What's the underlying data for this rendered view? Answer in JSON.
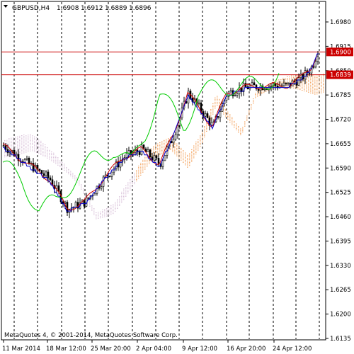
{
  "header": {
    "symbol_timeframe": "GBPUSD,H4",
    "ohlc": [
      "1.6908",
      "1.6912",
      "1.6889",
      "1.6896"
    ]
  },
  "footer": {
    "copyright": "MetaQuotes 4, © 2001-2014, MetaQuotes Software Corp."
  },
  "chart_data": {
    "type": "candlestick",
    "price_axis": [
      "1.6980",
      "1.6915",
      "1.6850",
      "1.6785",
      "1.6720",
      "1.6655",
      "1.6590",
      "1.6525",
      "1.6460",
      "1.6395",
      "1.6330",
      "1.6265",
      "1.6200",
      "1.6135"
    ],
    "price_range": [
      1.6135,
      1.698
    ],
    "time_axis": [
      "11 Mar 2014",
      "18 Mar 12:00",
      "25 Mar 20:00",
      "2 Apr 04:00",
      "9 Apr 12:00",
      "16 Apr 20:00",
      "24 Apr 12:00"
    ],
    "price_labels": [
      {
        "text": "1.6900",
        "value": 1.69,
        "color": "#cc0000"
      },
      {
        "text": "1.6839",
        "value": 1.6839,
        "color": "#cc0000"
      }
    ],
    "horizontal_lines": [
      1.69,
      1.6839
    ],
    "grid": "dashed vertical",
    "colors": {
      "price_line_label_bg": "#cc0000",
      "tenkan": "#cc0000",
      "kijun": "#0000cc",
      "chikou": "#00cc00",
      "cloud_a": "#f4a460",
      "cloud_b": "#d8bfd8",
      "candles": "#000000"
    },
    "indicator": "Ichimoku Kinko Hyo"
  }
}
